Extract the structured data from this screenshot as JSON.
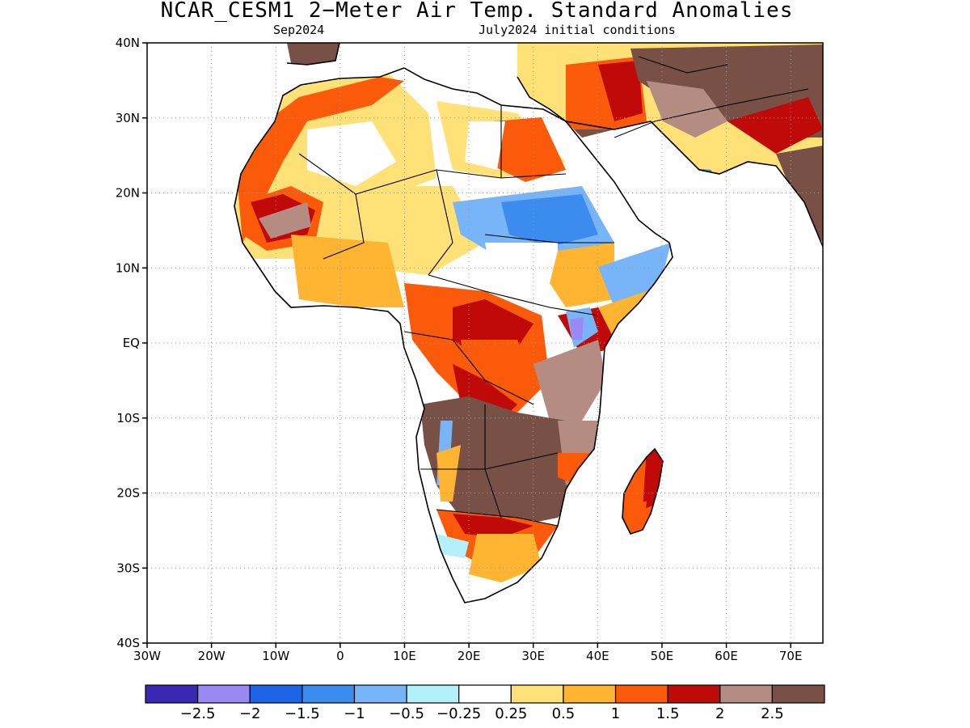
{
  "title": "NCAR_CESM1 2−Meter Air Temp. Standard Anomalies",
  "subtitle_left": "Sep2024",
  "subtitle_right": "July2024 initial conditions",
  "map": {
    "lon_range": [
      -30,
      75
    ],
    "lat_range": [
      -40,
      40
    ],
    "lat_ticks": [
      {
        "value": 40,
        "label": "40N"
      },
      {
        "value": 30,
        "label": "30N"
      },
      {
        "value": 20,
        "label": "20N"
      },
      {
        "value": 10,
        "label": "10N"
      },
      {
        "value": 0,
        "label": "EQ"
      },
      {
        "value": -10,
        "label": "10S"
      },
      {
        "value": -20,
        "label": "20S"
      },
      {
        "value": -30,
        "label": "30S"
      },
      {
        "value": -40,
        "label": "40S"
      }
    ],
    "lon_ticks": [
      {
        "value": -30,
        "label": "30W"
      },
      {
        "value": -20,
        "label": "20W"
      },
      {
        "value": -10,
        "label": "10W"
      },
      {
        "value": 0,
        "label": "0"
      },
      {
        "value": 10,
        "label": "10E"
      },
      {
        "value": 20,
        "label": "20E"
      },
      {
        "value": 30,
        "label": "30E"
      },
      {
        "value": 40,
        "label": "40E"
      },
      {
        "value": 50,
        "label": "50E"
      },
      {
        "value": 60,
        "label": "60E"
      },
      {
        "value": 70,
        "label": "70E"
      }
    ],
    "grid": "dotted"
  },
  "colorbar": {
    "colors": [
      "#3a27b4",
      "#9a88f5",
      "#1e64e6",
      "#3c8cf0",
      "#78b4f8",
      "#b4f0fa",
      "#ffffff",
      "#ffe178",
      "#ffb432",
      "#fa5a0a",
      "#c00a0a",
      "#b48c82",
      "#785046"
    ],
    "labels": [
      "−2.5",
      "−2",
      "−1.5",
      "−1",
      "−0.5",
      "−0.25",
      "0.25",
      "0.5",
      "1",
      "1.5",
      "2",
      "2.5"
    ]
  }
}
